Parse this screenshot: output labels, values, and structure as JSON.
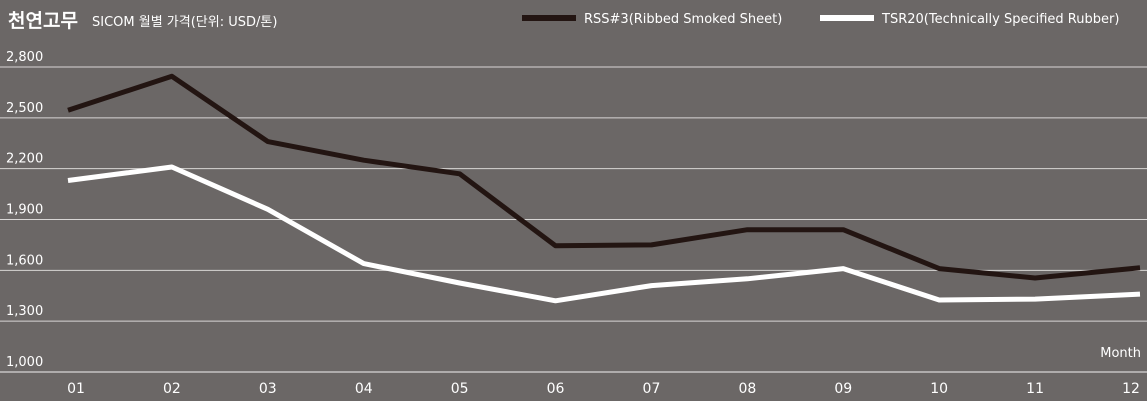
{
  "chart_data": {
    "type": "line",
    "title": "천연고무",
    "subtitle": "SICOM 월별 가격(단위: USD/톤)",
    "xlabel": "Month",
    "ylabel": "",
    "categories": [
      "01",
      "02",
      "03",
      "04",
      "05",
      "06",
      "07",
      "08",
      "09",
      "10",
      "11",
      "12"
    ],
    "y_ticks": [
      "1,000",
      "1,300",
      "1,600",
      "1,900",
      "2,200",
      "2,500",
      "2,800"
    ],
    "ylim": [
      1000,
      2850
    ],
    "grid": true,
    "legend_position": "top-right",
    "series": [
      {
        "name": "RSS#3(Ribbed Smoked Sheet)",
        "color": "#231512",
        "values": [
          2545,
          2745,
          2360,
          2250,
          2170,
          1745,
          1750,
          1840,
          1840,
          1610,
          1555,
          1615
        ]
      },
      {
        "name": "TSR20(Technically Specified Rubber)",
        "color": "#ffffff",
        "values": [
          2130,
          2210,
          1960,
          1640,
          1525,
          1420,
          1510,
          1550,
          1610,
          1425,
          1430,
          1460
        ]
      }
    ]
  },
  "colors": {
    "background": "#6b6766",
    "grid": "#d8d6d5",
    "text": "#ffffff"
  }
}
